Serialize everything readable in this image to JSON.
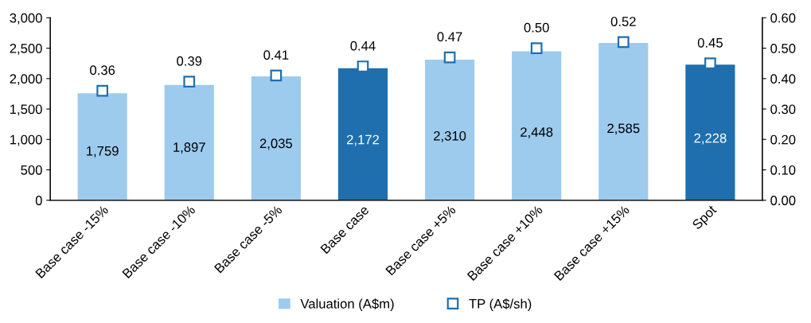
{
  "chart_data": {
    "type": "bar",
    "categories": [
      "Base case -15%",
      "Base case -10%",
      "Base case -5%",
      "Base case",
      "Base case +5%",
      "Base case +10%",
      "Base case +15%",
      "Spot"
    ],
    "series": [
      {
        "name": "Valuation (A$m)",
        "color": "#9dcbee",
        "colors": [
          "#9dcbee",
          "#9dcbee",
          "#9dcbee",
          "#1f6fae",
          "#9dcbee",
          "#9dcbee",
          "#9dcbee",
          "#1f6fae"
        ],
        "values": [
          1759,
          1897,
          2035,
          2172,
          2310,
          2448,
          2585,
          2228
        ],
        "value_labels": [
          "1,759",
          "1,897",
          "2,035",
          "2,172",
          "2,310",
          "2,448",
          "2,585",
          "2,228"
        ]
      },
      {
        "name": "TP (A$/sh)",
        "type": "scatter",
        "axis": "y2",
        "marker": "square",
        "color": "#1f6fae",
        "values": [
          0.36,
          0.39,
          0.41,
          0.44,
          0.47,
          0.5,
          0.52,
          0.45
        ],
        "value_labels": [
          "0.36",
          "0.39",
          "0.41",
          "0.44",
          "0.47",
          "0.50",
          "0.52",
          "0.45"
        ]
      }
    ],
    "ylim": [
      0,
      3000
    ],
    "yticks": [
      {
        "value": 0,
        "label": "0"
      },
      {
        "value": 500,
        "label": "500"
      },
      {
        "value": 1000,
        "label": "1,000"
      },
      {
        "value": 1500,
        "label": "1,500"
      },
      {
        "value": 2000,
        "label": "2,000"
      },
      {
        "value": 2500,
        "label": "2,500"
      },
      {
        "value": 3000,
        "label": "3,000"
      }
    ],
    "y2lim": [
      0,
      0.6
    ],
    "y2ticks": [
      {
        "value": 0,
        "label": "0.00"
      },
      {
        "value": 0.1,
        "label": "0.10"
      },
      {
        "value": 0.2,
        "label": "0.20"
      },
      {
        "value": 0.3,
        "label": "0.30"
      },
      {
        "value": 0.4,
        "label": "0.40"
      },
      {
        "value": 0.5,
        "label": "0.50"
      },
      {
        "value": 0.6,
        "label": "0.60"
      }
    ],
    "grid": false,
    "legend": "bottom"
  }
}
